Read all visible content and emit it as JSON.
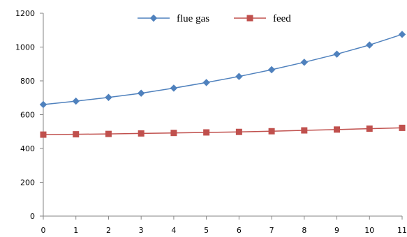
{
  "chart_data": {
    "type": "line",
    "title": "",
    "xlabel": "",
    "ylabel": "",
    "x": [
      0,
      1,
      2,
      3,
      4,
      5,
      6,
      7,
      8,
      9,
      10,
      11
    ],
    "xlim": [
      0,
      11
    ],
    "ylim": [
      0,
      1200
    ],
    "y_ticks": [
      0,
      200,
      400,
      600,
      800,
      1000,
      1200
    ],
    "x_tick_labels": [
      "0",
      "1",
      "2",
      "3",
      "4",
      "5",
      "6",
      "7",
      "8",
      "9",
      "10",
      "11"
    ],
    "y_tick_labels": [
      "0",
      "200",
      "400",
      "600",
      "800",
      "1000",
      "1200"
    ],
    "grid": false,
    "legend_position": "top-center",
    "series": [
      {
        "name": "flue gas",
        "color": "#4F81BD",
        "marker": "diamond",
        "values": [
          660,
          680,
          702,
          727,
          757,
          790,
          826,
          866,
          910,
          958,
          1012,
          1075
        ]
      },
      {
        "name": "feed",
        "color": "#C0504D",
        "marker": "square",
        "values": [
          482,
          484,
          486,
          489,
          492,
          495,
          498,
          502,
          507,
          512,
          517,
          522
        ]
      }
    ]
  }
}
